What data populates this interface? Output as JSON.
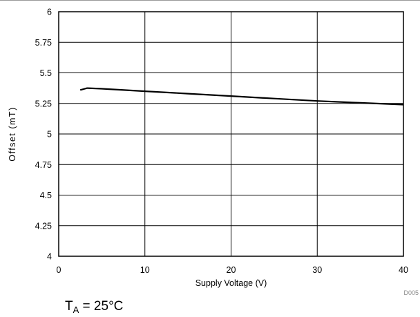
{
  "chart_data": {
    "type": "line",
    "xlabel": "Supply Voltage (V)",
    "ylabel": "Offset (mT)",
    "xlim": [
      0,
      40
    ],
    "ylim": [
      4,
      6
    ],
    "x_ticks": [
      0,
      10,
      20,
      30,
      40
    ],
    "x_tick_labels": [
      "0",
      "10",
      "20",
      "30",
      "40"
    ],
    "y_ticks": [
      4,
      4.25,
      4.5,
      4.75,
      5,
      5.25,
      5.5,
      5.75,
      6
    ],
    "y_tick_labels": [
      "4",
      "4.25",
      "4.5",
      "4.75",
      "5",
      "5.25",
      "5.5",
      "5.75",
      "6"
    ],
    "grid": true,
    "series": [
      {
        "x": [
          2.5,
          3.3,
          5,
          10,
          15,
          20,
          25,
          30,
          35,
          40
        ],
        "y": [
          5.36,
          5.375,
          5.37,
          5.35,
          5.33,
          5.31,
          5.29,
          5.27,
          5.255,
          5.24
        ]
      }
    ],
    "figure_id": "D005",
    "line_color": "#000000"
  },
  "condition": {
    "prefix": "T",
    "subscript": "A",
    "value": " = 25°C"
  }
}
